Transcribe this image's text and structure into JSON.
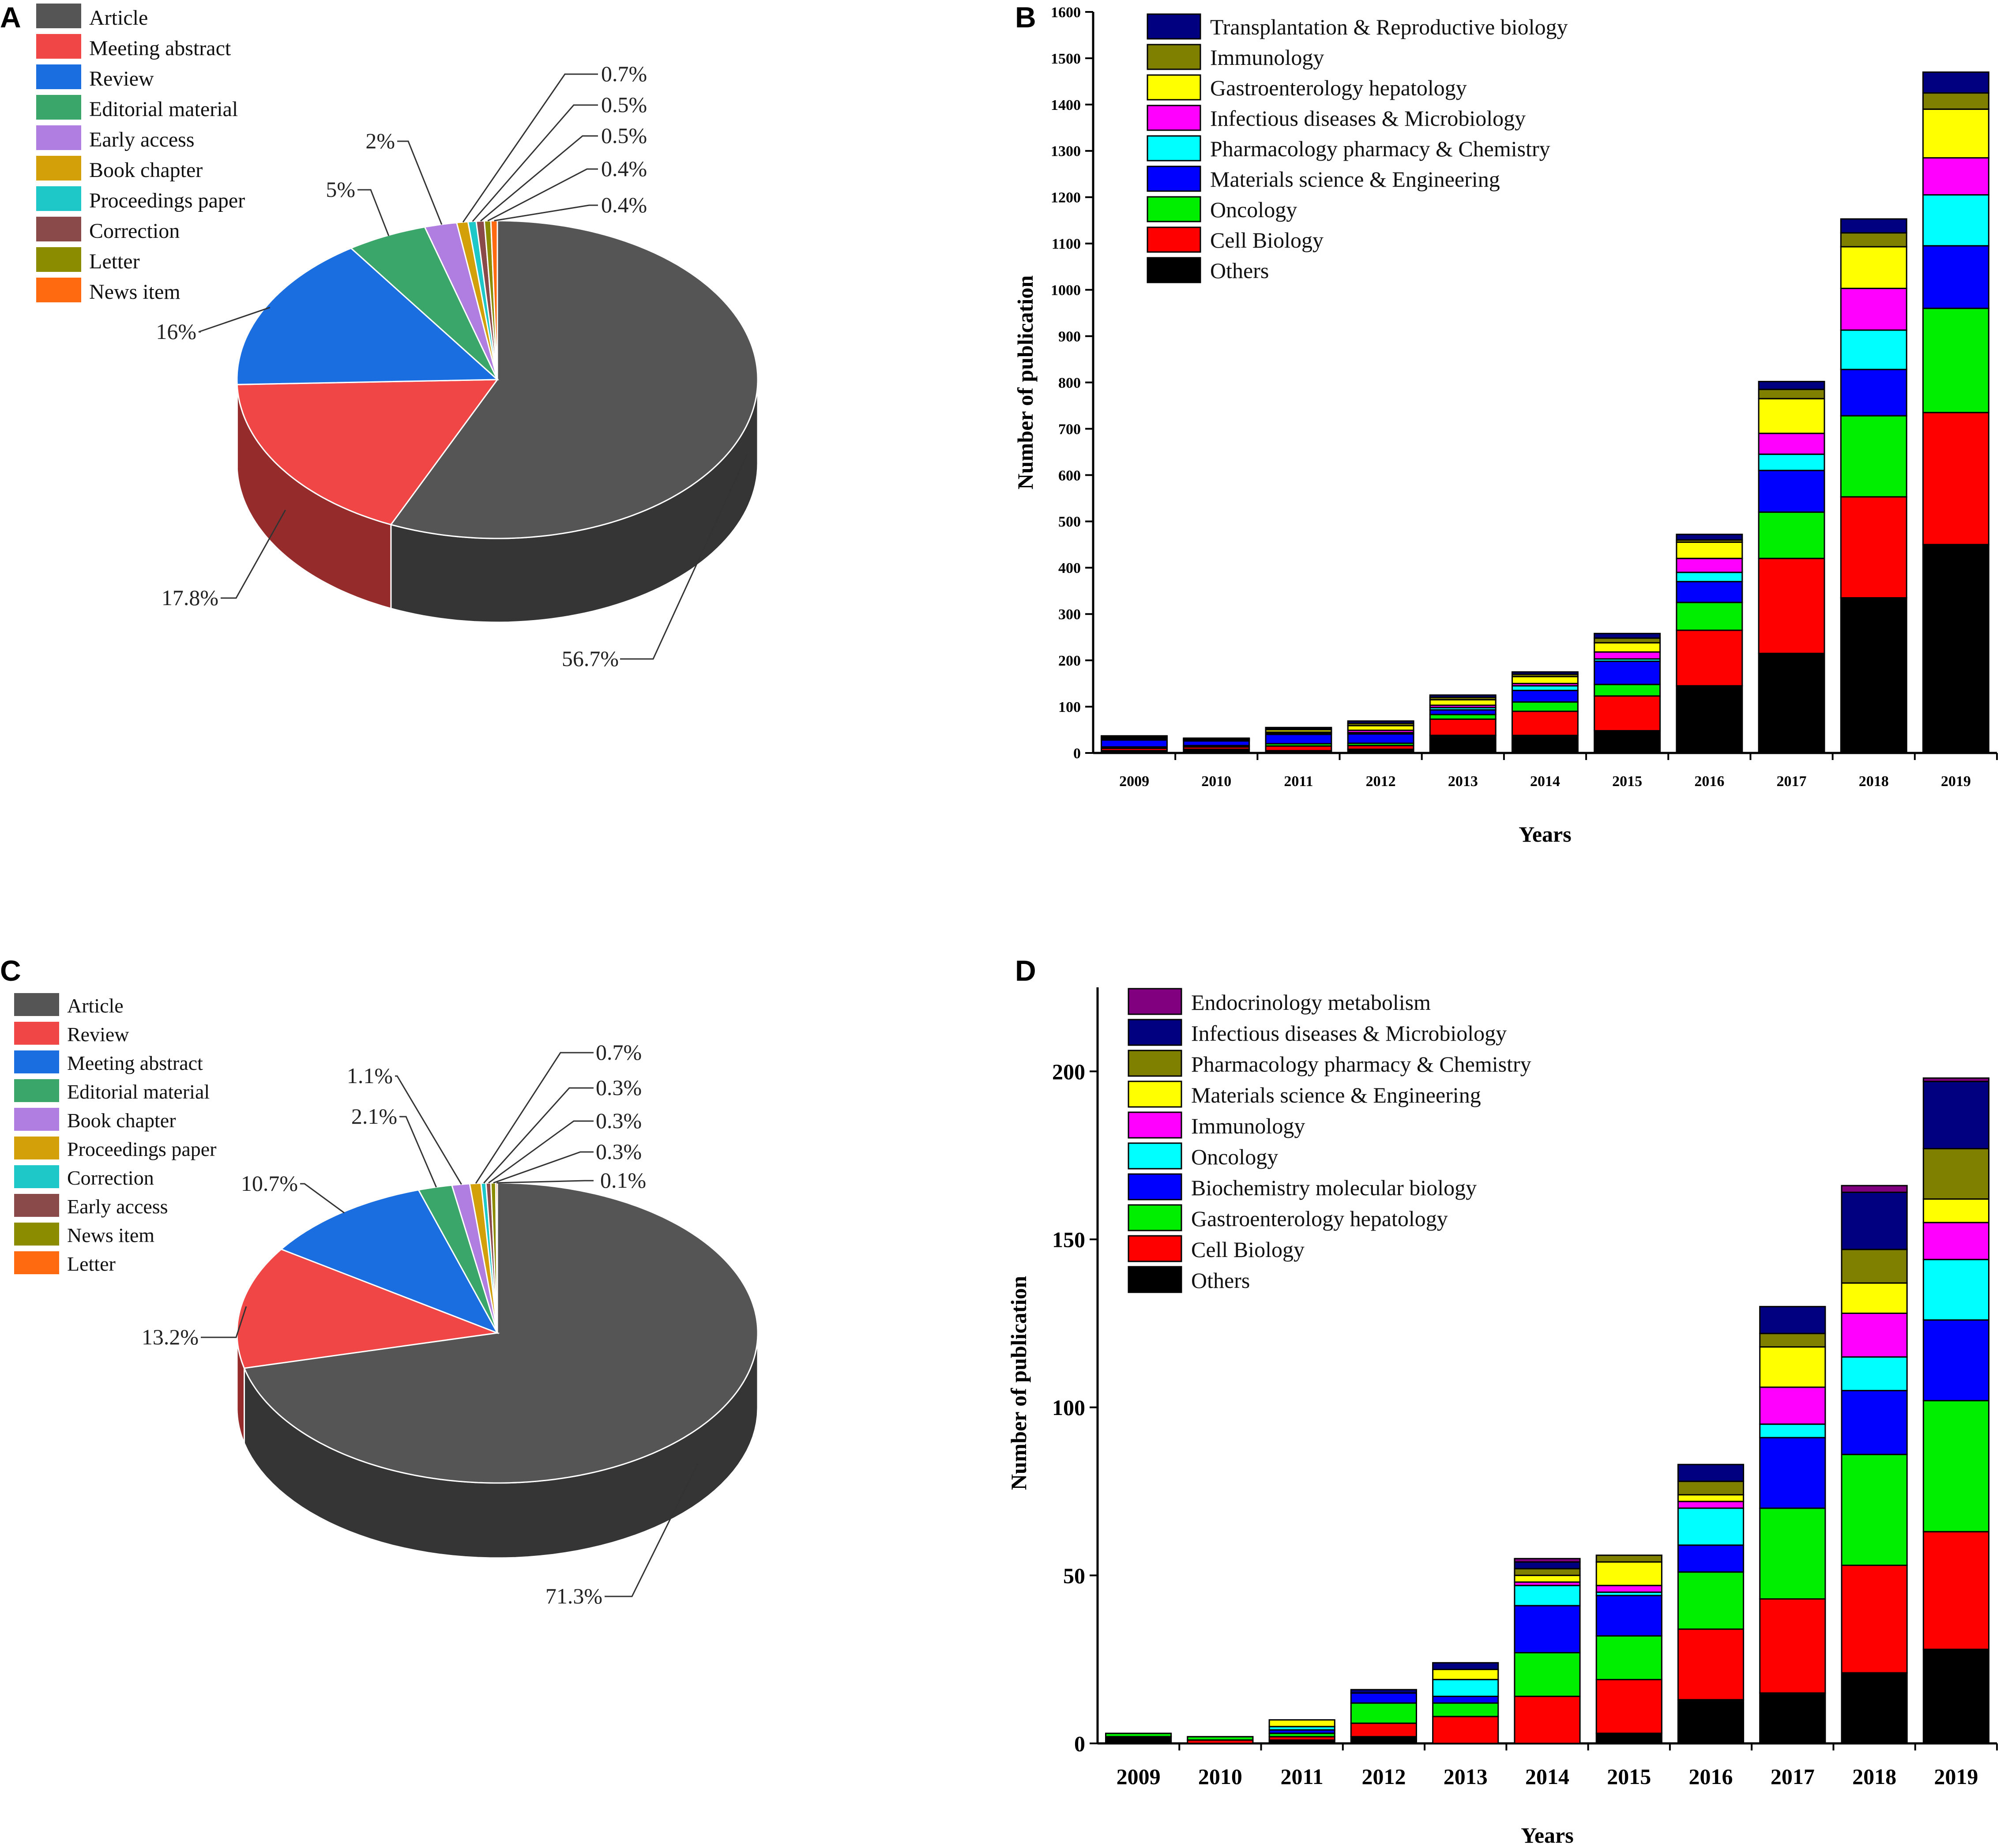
{
  "panel_letters": [
    "A",
    "B",
    "C",
    "D"
  ],
  "chart_data": [
    {
      "panel": "A",
      "type": "pie",
      "legend": [
        "Article",
        "Meeting abstract",
        "Review",
        "Editorial material",
        "Early access",
        "Book chapter",
        "Proceedings paper",
        "Correction",
        "Letter",
        "News item"
      ],
      "colors": [
        "#555555",
        "#f04646",
        "#1a6ee0",
        "#3aa66a",
        "#b07ee0",
        "#d4a00a",
        "#1ec8c8",
        "#8a4a4a",
        "#8c8c00",
        "#ff6a10"
      ],
      "values": [
        56.7,
        17.8,
        16,
        5,
        2,
        0.7,
        0.5,
        0.5,
        0.4,
        0.4
      ],
      "labels": [
        "56.7%",
        "17.8%",
        "16%",
        "5%",
        "2%",
        "0.7%",
        "0.5%",
        "0.5%",
        "0.4%",
        "0.4%"
      ]
    },
    {
      "panel": "B",
      "type": "bar",
      "stacked": true,
      "title": "",
      "xlabel": "Years",
      "ylabel": "Number of publication",
      "ylim": [
        0,
        1600
      ],
      "yticks": [
        0,
        100,
        200,
        300,
        400,
        500,
        600,
        700,
        800,
        900,
        1000,
        1100,
        1200,
        1300,
        1400,
        1500,
        1600
      ],
      "categories": [
        "2009",
        "2010",
        "2011",
        "2012",
        "2013",
        "2014",
        "2015",
        "2016",
        "2017",
        "2018",
        "2019"
      ],
      "legend_order": [
        "Transplantation & Reproductive biology",
        "Immunology",
        "Gastroenterology hepatology",
        "Infectious diseases & Microbiology",
        "Pharmacology pharmacy & Chemistry",
        "Materials science & Engineering",
        "Oncology",
        "Cell Biology",
        "Others"
      ],
      "series": [
        {
          "name": "Others",
          "color": "#000000",
          "values": [
            5,
            8,
            5,
            8,
            38,
            38,
            48,
            145,
            215,
            335,
            450
          ]
        },
        {
          "name": "Cell Biology",
          "color": "#ff0000",
          "values": [
            5,
            5,
            10,
            8,
            35,
            52,
            75,
            120,
            205,
            218,
            285
          ]
        },
        {
          "name": "Oncology",
          "color": "#00ee00",
          "values": [
            3,
            3,
            5,
            5,
            10,
            20,
            25,
            60,
            100,
            175,
            225
          ]
        },
        {
          "name": "Materials science & Engineering",
          "color": "#0000ff",
          "values": [
            15,
            10,
            20,
            20,
            10,
            25,
            50,
            45,
            90,
            100,
            135
          ]
        },
        {
          "name": "Pharmacology pharmacy & Chemistry",
          "color": "#00ffff",
          "values": [
            2,
            2,
            3,
            3,
            5,
            10,
            5,
            20,
            35,
            85,
            110
          ]
        },
        {
          "name": "Infectious diseases & Microbiology",
          "color": "#ff00ff",
          "values": [
            2,
            2,
            2,
            5,
            5,
            5,
            15,
            30,
            45,
            90,
            80
          ]
        },
        {
          "name": "Gastroenterology hepatology",
          "color": "#ffff00",
          "values": [
            2,
            1,
            5,
            10,
            12,
            15,
            20,
            35,
            75,
            90,
            105
          ]
        },
        {
          "name": "Immunology",
          "color": "#808000",
          "values": [
            1,
            0,
            2,
            5,
            5,
            5,
            10,
            5,
            20,
            30,
            35
          ]
        },
        {
          "name": "Transplantation & Reproductive biology",
          "color": "#000080",
          "values": [
            2,
            1,
            3,
            5,
            5,
            5,
            10,
            12,
            17,
            30,
            45
          ]
        }
      ]
    },
    {
      "panel": "C",
      "type": "pie",
      "legend": [
        "Article",
        "Review",
        "Meeting abstract",
        "Editorial material",
        "Book chapter",
        "Proceedings paper",
        "Correction",
        "Early access",
        "News item",
        "Letter"
      ],
      "colors": [
        "#555555",
        "#f04646",
        "#1a6ee0",
        "#3aa66a",
        "#b07ee0",
        "#d4a00a",
        "#1ec8c8",
        "#8a4a4a",
        "#8c8c00",
        "#ff6a10"
      ],
      "values": [
        71.3,
        13.2,
        10.7,
        2.1,
        1.1,
        0.7,
        0.3,
        0.3,
        0.3,
        0.1
      ],
      "labels": [
        "71.3%",
        "13.2%",
        "10.7%",
        "2.1%",
        "1.1%",
        "0.7%",
        "0.3%",
        "0.3%",
        "0.3%",
        "0.1%"
      ]
    },
    {
      "panel": "D",
      "type": "bar",
      "stacked": true,
      "title": "",
      "xlabel": "Years",
      "ylabel": "Number of publication",
      "ylim": [
        0,
        225
      ],
      "yticks": [
        0,
        50,
        100,
        150,
        200
      ],
      "categories": [
        "2009",
        "2010",
        "2011",
        "2012",
        "2013",
        "2014",
        "2015",
        "2016",
        "2017",
        "2018",
        "2019"
      ],
      "legend_order": [
        "Endocrinology metabolism",
        "Infectious diseases & Microbiology",
        "Pharmacology pharmacy & Chemistry",
        "Materials science & Engineering",
        "Immunology",
        "Oncology",
        "Biochemistry molecular biology",
        "Gastroenterology hepatology",
        "Cell Biology",
        "Others"
      ],
      "series": [
        {
          "name": "Others",
          "color": "#000000",
          "values": [
            2,
            0,
            1,
            2,
            0,
            0,
            3,
            13,
            15,
            21,
            28
          ]
        },
        {
          "name": "Cell Biology",
          "color": "#ff0000",
          "values": [
            0,
            1,
            1,
            4,
            8,
            14,
            16,
            21,
            28,
            32,
            35
          ]
        },
        {
          "name": "Gastroenterology hepatology",
          "color": "#00ee00",
          "values": [
            1,
            1,
            1,
            6,
            4,
            13,
            13,
            17,
            27,
            33,
            39
          ]
        },
        {
          "name": "Biochemistry molecular biology",
          "color": "#0000ff",
          "values": [
            0,
            0,
            1,
            3,
            2,
            14,
            12,
            8,
            21,
            19,
            24
          ]
        },
        {
          "name": "Oncology",
          "color": "#00ffff",
          "values": [
            0,
            0,
            1,
            0,
            5,
            6,
            1,
            11,
            4,
            10,
            18
          ]
        },
        {
          "name": "Immunology",
          "color": "#ff00ff",
          "values": [
            0,
            0,
            0,
            0,
            0,
            1,
            2,
            2,
            11,
            13,
            11
          ]
        },
        {
          "name": "Materials science & Engineering",
          "color": "#ffff00",
          "values": [
            0,
            0,
            2,
            0,
            3,
            2,
            7,
            2,
            12,
            9,
            7
          ]
        },
        {
          "name": "Pharmacology pharmacy & Chemistry",
          "color": "#808000",
          "values": [
            0,
            0,
            0,
            0,
            0,
            2,
            2,
            4,
            4,
            10,
            15
          ]
        },
        {
          "name": "Infectious diseases & Microbiology",
          "color": "#000080",
          "values": [
            0,
            0,
            0,
            1,
            2,
            2,
            0,
            5,
            8,
            17,
            20
          ]
        },
        {
          "name": "Endocrinology metabolism",
          "color": "#800080",
          "values": [
            0,
            0,
            0,
            0,
            0,
            1,
            0,
            0,
            0,
            2,
            1
          ]
        }
      ]
    }
  ]
}
